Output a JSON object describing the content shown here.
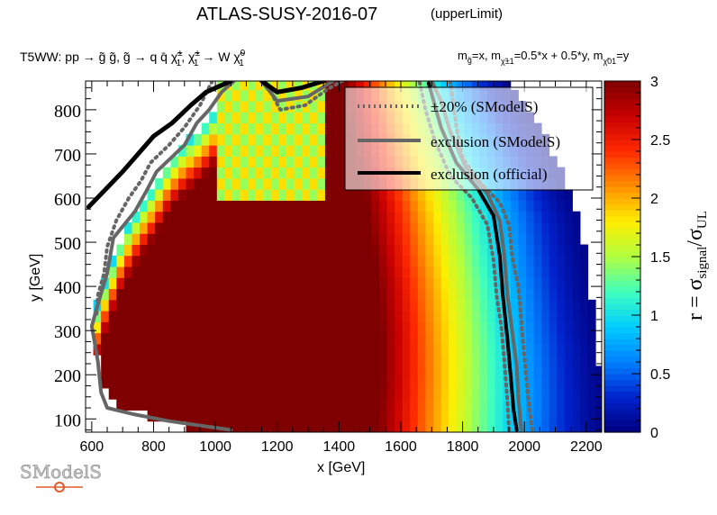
{
  "header": {
    "title": "ATLAS-SUSY-2016-07",
    "subtitle": "(upperLimit)"
  },
  "process": {
    "label": "T5WW: pp → g̃ g̃, g̃ → q q̄ χ̃±1, χ̃±1 → W χ̃01",
    "prefix": "T5WW: pp",
    "mass_relation": "m_g̃=x, m_χ̃±1=0.5*x + 0.5*y, m_χ̃01=y"
  },
  "branding": {
    "logo_text": "SModelS"
  },
  "chart_data": {
    "type": "heatmap",
    "title": "ATLAS-SUSY-2016-07 (upperLimit)",
    "xlabel": "x [GeV]",
    "ylabel": "y [GeV]",
    "zlabel": "r = σ_signal/σ_UL",
    "xlim": [
      580,
      2250
    ],
    "ylim": [
      70,
      865
    ],
    "zlim": [
      0,
      3
    ],
    "x_ticks": [
      600,
      800,
      1000,
      1200,
      1400,
      1600,
      1800,
      2000,
      2200
    ],
    "y_ticks": [
      100,
      200,
      300,
      400,
      500,
      600,
      700,
      800
    ],
    "z_ticks": [
      0,
      0.5,
      1,
      1.5,
      2,
      2.5,
      3
    ],
    "cell_size_gev": [
      25,
      25
    ],
    "colormap": [
      "#00007f",
      "#0022cc",
      "#0080ff",
      "#00ccff",
      "#3fffbf",
      "#b0ff40",
      "#ffee00",
      "#ff9000",
      "#ff2a00",
      "#c80000",
      "#7f0000"
    ],
    "legend_position": "top-right",
    "legend": [
      {
        "label": "±20% (SModelS)",
        "style": "dotted",
        "color": "#666666"
      },
      {
        "label": "exclusion (SModelS)",
        "style": "solid",
        "color": "#666666"
      },
      {
        "label": "exclusion (official)",
        "style": "solid",
        "color": "#000000"
      }
    ],
    "region_boundaries": {
      "upper_left_y": [
        [
          590,
          300
        ],
        [
          650,
          430
        ],
        [
          700,
          520
        ],
        [
          750,
          580
        ],
        [
          800,
          630
        ],
        [
          850,
          690
        ],
        [
          900,
          730
        ],
        [
          950,
          760
        ],
        [
          1000,
          800
        ],
        [
          1050,
          830
        ],
        [
          1100,
          870
        ]
      ],
      "lower_left_y": [
        [
          590,
          300
        ],
        [
          620,
          230
        ],
        [
          640,
          160
        ],
        [
          680,
          125
        ],
        [
          760,
          110
        ],
        [
          850,
          90
        ],
        [
          950,
          78
        ],
        [
          1000,
          75
        ]
      ],
      "saturation_right_x": [
        [
          95,
          1520
        ],
        [
          200,
          1530
        ],
        [
          300,
          1530
        ],
        [
          400,
          1520
        ],
        [
          500,
          1500
        ],
        [
          600,
          1480
        ],
        [
          700,
          1440
        ],
        [
          800,
          1420
        ],
        [
          865,
          1410
        ]
      ],
      "data_right_x": [
        [
          80,
          2250
        ],
        [
          150,
          2250
        ],
        [
          250,
          2240
        ],
        [
          350,
          2220
        ],
        [
          450,
          2200
        ],
        [
          550,
          2180
        ],
        [
          650,
          2130
        ],
        [
          750,
          2060
        ],
        [
          865,
          1950
        ]
      ]
    },
    "curves": {
      "exclusion_official": [
        [
          1975,
          75
        ],
        [
          1965,
          120
        ],
        [
          1955,
          200
        ],
        [
          1945,
          280
        ],
        [
          1930,
          380
        ],
        [
          1920,
          470
        ],
        [
          1900,
          560
        ],
        [
          1850,
          620
        ],
        [
          1780,
          680
        ],
        [
          1730,
          760
        ],
        [
          1690,
          860
        ]
      ],
      "official_upper_left": [
        [
          590,
          580
        ],
        [
          700,
          660
        ],
        [
          800,
          740
        ],
        [
          860,
          770
        ],
        [
          920,
          810
        ],
        [
          970,
          840
        ],
        [
          1050,
          865
        ]
      ],
      "official_top": [
        [
          1150,
          865
        ],
        [
          1200,
          840
        ],
        [
          1280,
          850
        ],
        [
          1350,
          865
        ]
      ],
      "exclusion_smodels": [
        [
          1990,
          75
        ],
        [
          1980,
          150
        ],
        [
          1975,
          220
        ],
        [
          1960,
          300
        ],
        [
          1945,
          380
        ],
        [
          1935,
          470
        ],
        [
          1920,
          550
        ],
        [
          1880,
          610
        ],
        [
          1810,
          670
        ],
        [
          1760,
          750
        ],
        [
          1730,
          820
        ],
        [
          1700,
          865
        ]
      ],
      "exclusion_smodels_left": [
        [
          1050,
          75
        ],
        [
          850,
          95
        ],
        [
          740,
          110
        ],
        [
          650,
          125
        ],
        [
          630,
          160
        ],
        [
          620,
          230
        ],
        [
          600,
          310
        ],
        [
          620,
          360
        ],
        [
          650,
          430
        ],
        [
          670,
          510
        ],
        [
          740,
          570
        ],
        [
          780,
          620
        ],
        [
          810,
          660
        ],
        [
          870,
          700
        ],
        [
          900,
          720
        ],
        [
          940,
          770
        ],
        [
          980,
          800
        ],
        [
          1020,
          840
        ],
        [
          1060,
          865
        ]
      ],
      "exclusion_smodels_top": [
        [
          1150,
          865
        ],
        [
          1200,
          820
        ],
        [
          1300,
          830
        ],
        [
          1380,
          865
        ]
      ],
      "plus20_right": [
        [
          2025,
          75
        ],
        [
          2010,
          160
        ],
        [
          2000,
          240
        ],
        [
          1990,
          320
        ],
        [
          1980,
          400
        ],
        [
          1960,
          470
        ],
        [
          1950,
          540
        ],
        [
          1920,
          590
        ],
        [
          1850,
          640
        ],
        [
          1800,
          690
        ],
        [
          1780,
          760
        ],
        [
          1760,
          865
        ]
      ],
      "minus20_right": [
        [
          1950,
          75
        ],
        [
          1945,
          140
        ],
        [
          1935,
          230
        ],
        [
          1925,
          310
        ],
        [
          1910,
          380
        ],
        [
          1900,
          460
        ],
        [
          1880,
          540
        ],
        [
          1830,
          600
        ],
        [
          1760,
          650
        ],
        [
          1710,
          730
        ],
        [
          1680,
          800
        ],
        [
          1660,
          865
        ]
      ],
      "plus20_left": [
        [
          990,
          865
        ],
        [
          950,
          810
        ],
        [
          900,
          760
        ],
        [
          850,
          720
        ],
        [
          790,
          680
        ],
        [
          760,
          640
        ],
        [
          720,
          600
        ],
        [
          680,
          550
        ],
        [
          650,
          490
        ],
        [
          640,
          430
        ],
        [
          620,
          380
        ],
        [
          615,
          330
        ]
      ],
      "plus20_top": [
        [
          1160,
          865
        ],
        [
          1210,
          800
        ],
        [
          1290,
          810
        ],
        [
          1360,
          845
        ],
        [
          1410,
          865
        ]
      ]
    }
  }
}
